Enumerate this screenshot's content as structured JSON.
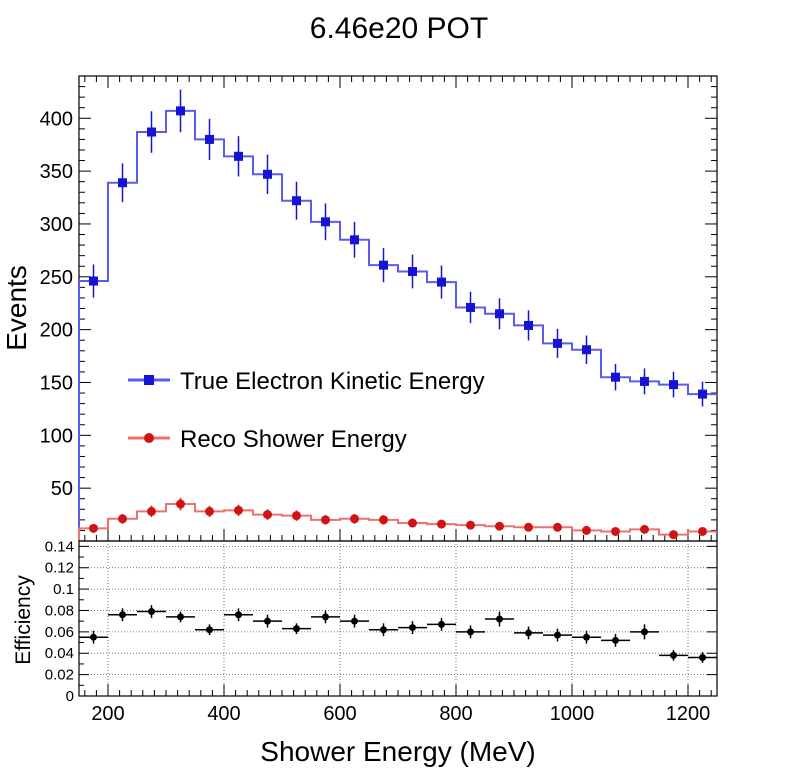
{
  "chart_data": [
    {
      "type": "line",
      "title": "6.46e20 POT",
      "ylabel": "Events",
      "xlim": [
        150,
        1250
      ],
      "ylim": [
        0,
        440
      ],
      "bin_width": 50,
      "x": [
        175,
        225,
        275,
        325,
        375,
        425,
        475,
        525,
        575,
        625,
        675,
        725,
        775,
        825,
        875,
        925,
        975,
        1025,
        1075,
        1125,
        1175,
        1225
      ],
      "yticks": [
        50,
        100,
        150,
        200,
        250,
        300,
        350,
        400
      ],
      "ytick_labels": [
        "50",
        "100",
        "150",
        "200",
        "250",
        "300",
        "350",
        "400"
      ],
      "series": [
        {
          "name": "True Electron Kinetic Energy",
          "color": "#5b5bef",
          "marker_color": "#1414d2",
          "values": [
            246,
            339,
            387,
            407,
            380,
            364,
            347,
            322,
            302,
            285,
            261,
            255,
            245,
            221,
            215,
            204,
            187,
            181,
            155,
            151,
            148,
            139
          ]
        },
        {
          "name": "Reco Shower Energy",
          "color": "#f07070",
          "marker_color": "#d01414",
          "values": [
            12,
            21,
            28,
            35,
            28,
            29,
            25,
            24,
            20,
            21,
            20,
            17,
            16,
            15,
            14,
            13,
            13,
            10,
            9,
            11,
            6,
            9
          ]
        }
      ],
      "legend": "center-left"
    },
    {
      "type": "scatter",
      "xlabel": "Shower Energy (MeV)",
      "ylabel": "Efficiency",
      "xlim": [
        150,
        1250
      ],
      "ylim": [
        0,
        0.145
      ],
      "grid": true,
      "xticks": [
        200,
        400,
        600,
        800,
        1000,
        1200
      ],
      "xtick_labels": [
        "200",
        "400",
        "600",
        "800",
        "1000",
        "1200"
      ],
      "yticks": [
        0,
        0.02,
        0.04,
        0.06,
        0.08,
        0.1,
        0.12,
        0.14
      ],
      "ytick_labels": [
        "0",
        "0.02",
        "0.04",
        "0.06",
        "0.08",
        "0.1",
        "0.12",
        "0.14"
      ],
      "x": [
        175,
        225,
        275,
        325,
        375,
        425,
        475,
        525,
        575,
        625,
        675,
        725,
        775,
        825,
        875,
        925,
        975,
        1025,
        1075,
        1125,
        1175,
        1225
      ],
      "values": [
        0.055,
        0.076,
        0.079,
        0.074,
        0.062,
        0.076,
        0.07,
        0.063,
        0.074,
        0.07,
        0.062,
        0.064,
        0.067,
        0.06,
        0.072,
        0.059,
        0.057,
        0.055,
        0.052,
        0.06,
        0.038,
        0.036
      ],
      "errors": [
        0.006,
        0.006,
        0.006,
        0.005,
        0.005,
        0.006,
        0.006,
        0.005,
        0.006,
        0.006,
        0.006,
        0.006,
        0.006,
        0.006,
        0.007,
        0.006,
        0.006,
        0.006,
        0.006,
        0.007,
        0.005,
        0.005
      ],
      "color": "#000000"
    }
  ]
}
